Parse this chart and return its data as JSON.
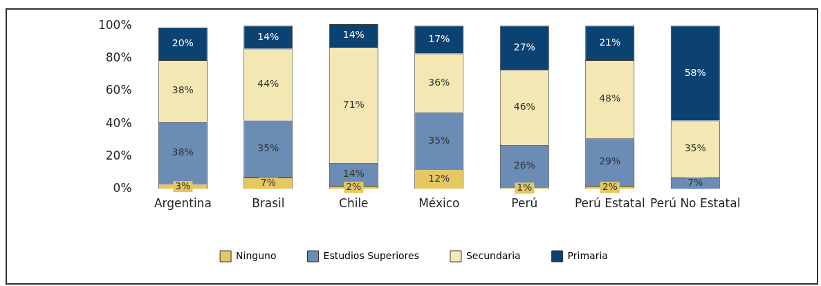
{
  "chart_data": {
    "type": "bar",
    "stacked": true,
    "categories": [
      "Argentina",
      "Brasil",
      "Chile",
      "México",
      "Perú",
      "Perú Estatal",
      "Perú No Estatal"
    ],
    "series": [
      {
        "name": "Ninguno",
        "color": "#e5c862",
        "values": [
          3,
          7,
          2,
          12,
          1,
          2,
          null
        ],
        "value_labels": [
          "3%",
          "7%",
          "2%",
          "12%",
          "1%",
          "2%",
          null
        ]
      },
      {
        "name": "Estudios Superiores",
        "color": "#6b8cb4",
        "values": [
          38,
          35,
          14,
          35,
          26,
          29,
          7
        ],
        "value_labels": [
          "38%",
          "35%",
          "14%",
          "35%",
          "26%",
          "29%",
          "7%"
        ]
      },
      {
        "name": "Secundaria",
        "color": "#f3e8b3",
        "values": [
          38,
          44,
          71,
          36,
          46,
          48,
          35
        ],
        "value_labels": [
          "38%",
          "44%",
          "71%",
          "36%",
          "46%",
          "48%",
          "35%"
        ]
      },
      {
        "name": "Primaria",
        "color": "#0b4272",
        "values": [
          20,
          14,
          14,
          17,
          27,
          21,
          58
        ],
        "value_labels": [
          "20%",
          "14%",
          "14%",
          "17%",
          "27%",
          "21%",
          "58%"
        ]
      }
    ],
    "ylim": [
      0,
      101
    ],
    "yticks": [
      {
        "value": 0,
        "label": "0%"
      },
      {
        "value": 20,
        "label": "20%"
      },
      {
        "value": 40,
        "label": "40%"
      },
      {
        "value": 60,
        "label": "60%"
      },
      {
        "value": 80,
        "label": "80%"
      },
      {
        "value": 100,
        "label": "100%"
      }
    ],
    "grid": false,
    "legend": "bottom"
  }
}
